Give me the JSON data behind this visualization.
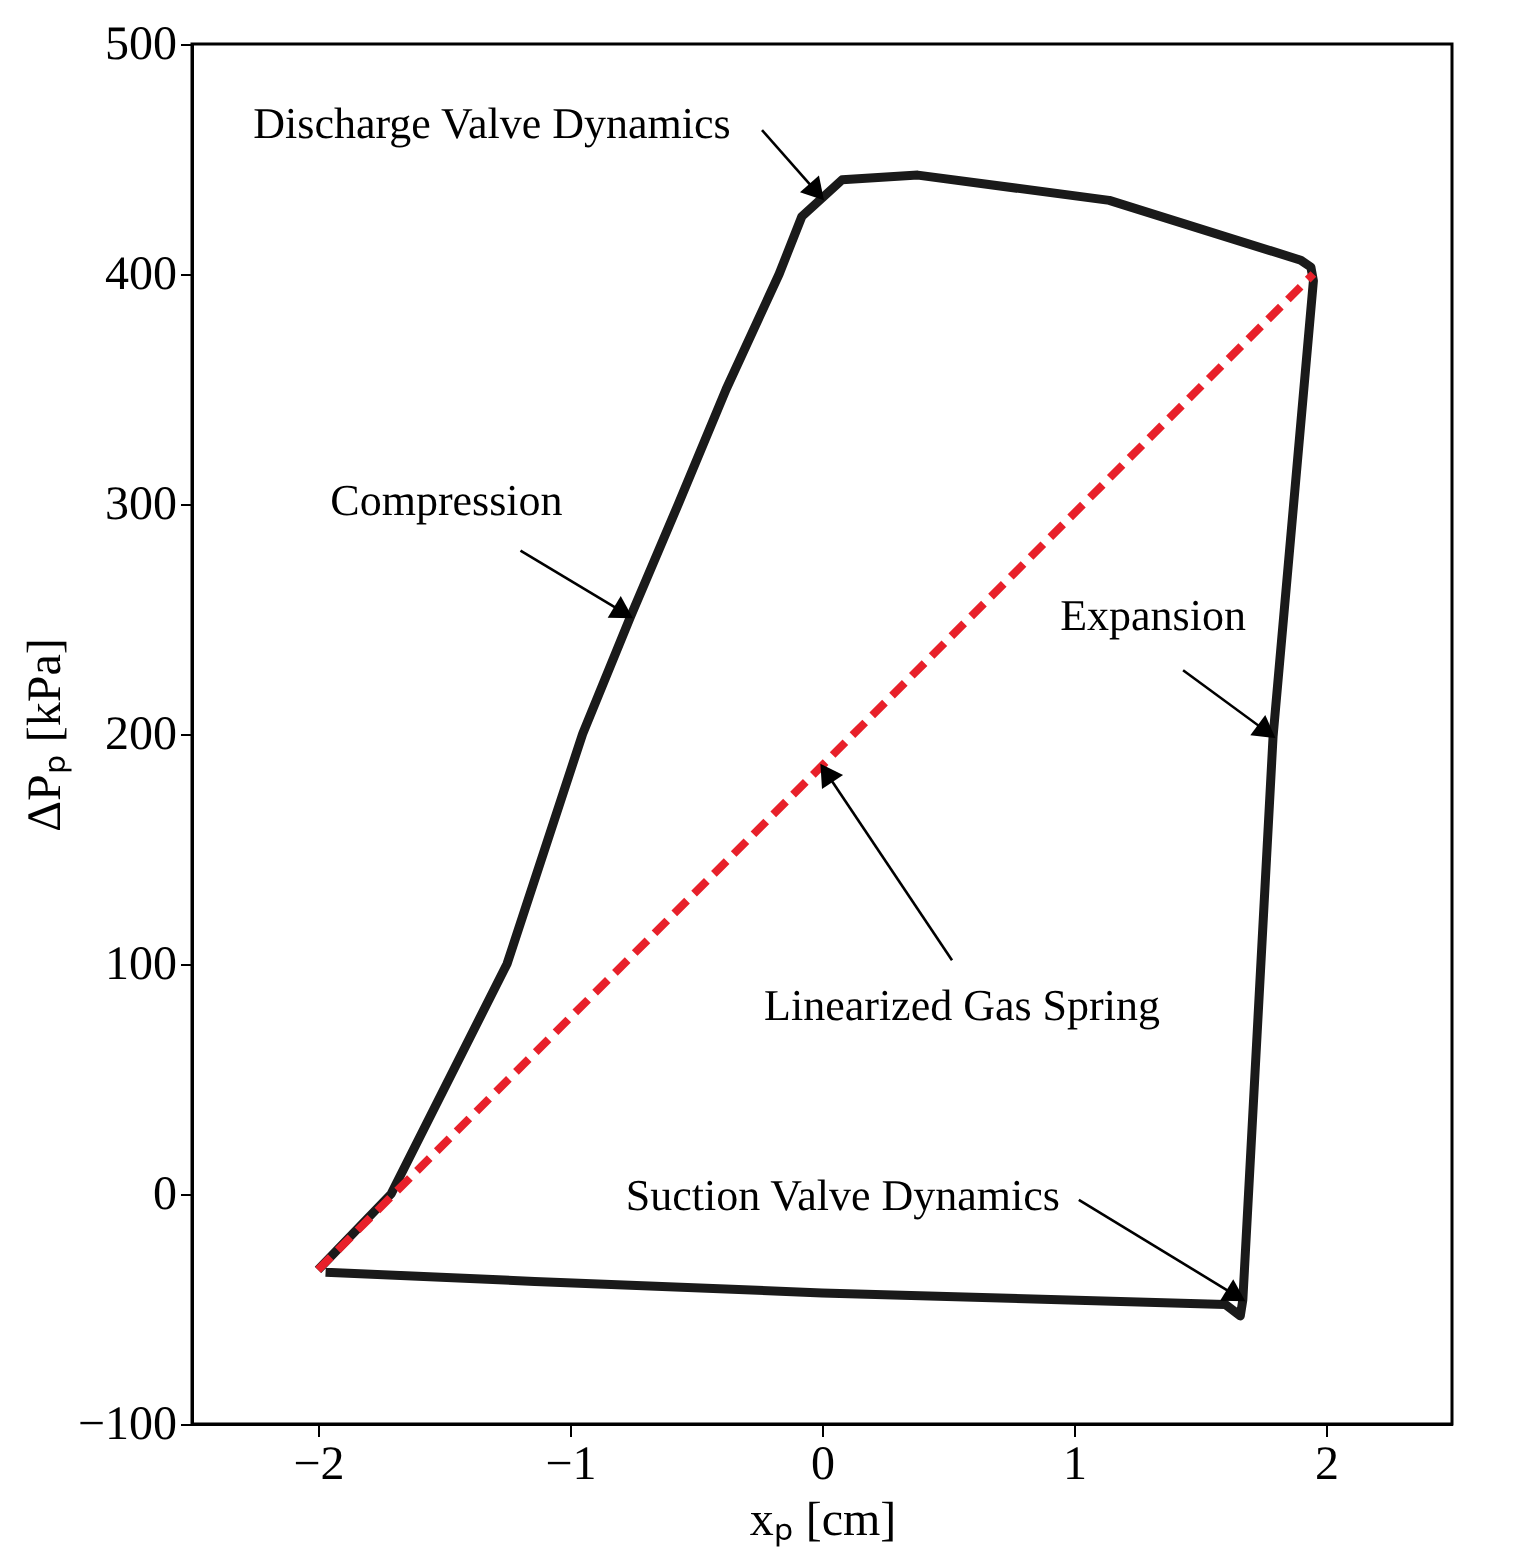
{
  "chart_data": {
    "type": "line",
    "xlabel": "xₚ [cm]",
    "ylabel": "ΔPₚ [kPa]",
    "xlim": [
      -2.5,
      2.5
    ],
    "ylim": [
      -100,
      500
    ],
    "xticks": [
      -2,
      -1,
      0,
      1,
      2
    ],
    "yticks": [
      -100,
      0,
      100,
      200,
      300,
      400,
      500
    ],
    "grid": false,
    "series": [
      {
        "color": "#e8202a",
        "line_style": "dashed",
        "x": [
          -2,
          1.95
        ],
        "values": [
          -33,
          400
        ]
      },
      {
        "color": "#1a1a1a",
        "line_style": "solid",
        "x": [
          -2,
          -1.71,
          -1.25,
          -0.95,
          -0.76,
          -0.57,
          -0.38,
          -0.17,
          -0.08,
          0.08,
          0.38,
          1.14,
          1.9,
          1.94,
          1.95,
          1.79,
          1.67,
          1.66,
          1.6,
          0,
          -1.14,
          -1.97
        ],
        "values": [
          -33,
          0,
          100,
          200,
          251,
          300,
          350,
          400,
          425,
          441,
          443,
          432,
          406,
          403,
          397,
          199,
          -46,
          -53,
          -48,
          -43,
          -38,
          -34
        ]
      }
    ],
    "annotations": [
      {
        "text": "Discharge Valve Dynamics",
        "x": 0.0,
        "y": 433
      },
      {
        "text": "Compression",
        "x": -0.76,
        "y": 251
      },
      {
        "text": "Expansion",
        "x": 1.79,
        "y": 199
      },
      {
        "text": "Linearized Gas Spring",
        "x": 0.0,
        "y": 186
      },
      {
        "text": "Suction Valve Dynamics",
        "x": 1.67,
        "y": -46
      }
    ]
  }
}
